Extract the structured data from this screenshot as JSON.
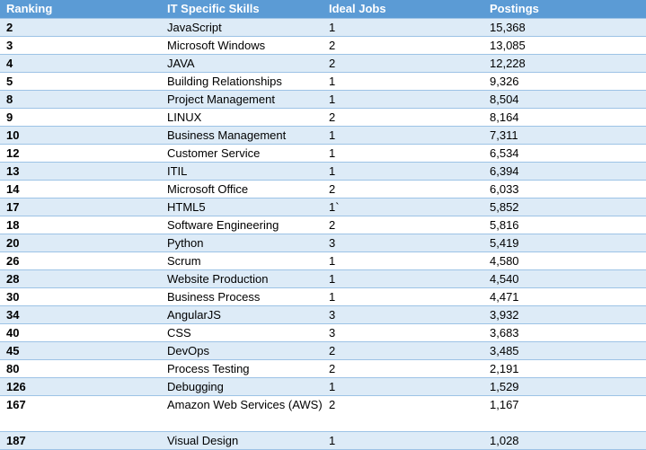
{
  "headers": [
    "Ranking",
    "IT Specific Skills",
    "Ideal Jobs",
    "Postings"
  ],
  "rows": [
    {
      "rank": "2",
      "skill": "JavaScript",
      "jobs": "1",
      "postings": "15,368"
    },
    {
      "rank": "3",
      "skill": "Microsoft Windows",
      "jobs": "2",
      "postings": "13,085"
    },
    {
      "rank": "4",
      "skill": "JAVA",
      "jobs": "2",
      "postings": "12,228"
    },
    {
      "rank": "5",
      "skill": "Building Relationships",
      "jobs": "1",
      "postings": "9,326"
    },
    {
      "rank": "8",
      "skill": "Project Management",
      "jobs": "1",
      "postings": "8,504"
    },
    {
      "rank": "9",
      "skill": "LINUX",
      "jobs": "2",
      "postings": "8,164"
    },
    {
      "rank": "10",
      "skill": "Business Management",
      "jobs": "1",
      "postings": "7,311"
    },
    {
      "rank": "12",
      "skill": "Customer Service",
      "jobs": "1",
      "postings": "6,534"
    },
    {
      "rank": "13",
      "skill": "ITIL",
      "jobs": "1",
      "postings": "6,394"
    },
    {
      "rank": "14",
      "skill": "Microsoft Office",
      "jobs": "2",
      "postings": "6,033"
    },
    {
      "rank": "17",
      "skill": "HTML5",
      "jobs": "1`",
      "postings": "5,852"
    },
    {
      "rank": "18",
      "skill": "Software Engineering",
      "jobs": "2",
      "postings": "5,816"
    },
    {
      "rank": "20",
      "skill": "Python",
      "jobs": "3",
      "postings": "5,419"
    },
    {
      "rank": "26",
      "skill": "Scrum",
      "jobs": "1",
      "postings": "4,580"
    },
    {
      "rank": "28",
      "skill": "Website Production",
      "jobs": "1",
      "postings": "4,540"
    },
    {
      "rank": "30",
      "skill": "Business Process",
      "jobs": "1",
      "postings": "4,471"
    },
    {
      "rank": "34",
      "skill": "AngularJS",
      "jobs": "3",
      "postings": "3,932"
    },
    {
      "rank": "40",
      "skill": "CSS",
      "jobs": "3",
      "postings": "3,683"
    },
    {
      "rank": "45",
      "skill": "DevOps",
      "jobs": "2",
      "postings": "3,485"
    },
    {
      "rank": "80",
      "skill": "Process Testing",
      "jobs": "2",
      "postings": "2,191"
    },
    {
      "rank": "126",
      "skill": "Debugging",
      "jobs": "1",
      "postings": "1,529"
    },
    {
      "rank": "167",
      "skill": "Amazon Web Services (AWS)",
      "jobs": "2",
      "postings": "1,167"
    },
    {
      "rank": "187",
      "skill": "Visual Design",
      "jobs": "1",
      "postings": "1,028"
    }
  ]
}
